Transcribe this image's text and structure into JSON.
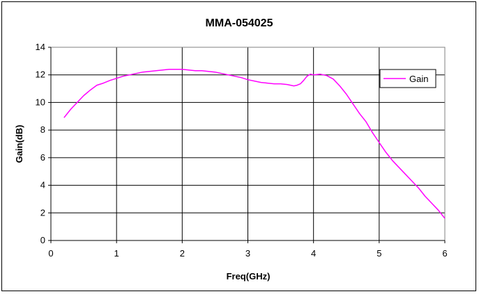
{
  "chart_data": {
    "type": "line",
    "title": "MMA-054025",
    "xlabel": "Freq(GHz)",
    "ylabel": "Gain(dB)",
    "xlim": [
      0,
      6
    ],
    "ylim": [
      0,
      14
    ],
    "x_ticks": [
      0,
      1,
      2,
      3,
      4,
      5,
      6
    ],
    "y_ticks": [
      0,
      2,
      4,
      6,
      8,
      10,
      12,
      14
    ],
    "grid": "horizontal and vertical major gridlines",
    "legend": "right",
    "series": [
      {
        "name": "Gain",
        "color": "#ff00ff",
        "x": [
          0.2,
          0.3,
          0.4,
          0.5,
          0.6,
          0.7,
          0.8,
          0.9,
          1.0,
          1.1,
          1.2,
          1.3,
          1.4,
          1.5,
          1.6,
          1.7,
          1.8,
          1.9,
          2.0,
          2.1,
          2.2,
          2.3,
          2.4,
          2.5,
          2.6,
          2.7,
          2.8,
          2.9,
          3.0,
          3.1,
          3.2,
          3.3,
          3.4,
          3.5,
          3.6,
          3.65,
          3.7,
          3.75,
          3.8,
          3.85,
          3.9,
          3.95,
          4.0,
          4.1,
          4.2,
          4.3,
          4.4,
          4.5,
          4.6,
          4.7,
          4.8,
          4.9,
          5.0,
          5.1,
          5.2,
          5.3,
          5.4,
          5.5,
          5.6,
          5.7,
          5.8,
          5.9,
          6.0
        ],
        "y": [
          8.9,
          9.5,
          10.0,
          10.5,
          10.9,
          11.25,
          11.4,
          11.6,
          11.75,
          11.9,
          12.0,
          12.1,
          12.2,
          12.25,
          12.3,
          12.35,
          12.4,
          12.4,
          12.4,
          12.35,
          12.3,
          12.3,
          12.25,
          12.2,
          12.1,
          12.0,
          11.9,
          11.8,
          11.65,
          11.55,
          11.45,
          11.4,
          11.35,
          11.35,
          11.3,
          11.25,
          11.2,
          11.25,
          11.35,
          11.6,
          11.9,
          12.05,
          12.0,
          12.05,
          11.95,
          11.7,
          11.2,
          10.6,
          9.9,
          9.2,
          8.6,
          7.8,
          7.1,
          6.4,
          5.8,
          5.3,
          4.8,
          4.3,
          3.8,
          3.2,
          2.7,
          2.2,
          1.6
        ]
      }
    ]
  }
}
